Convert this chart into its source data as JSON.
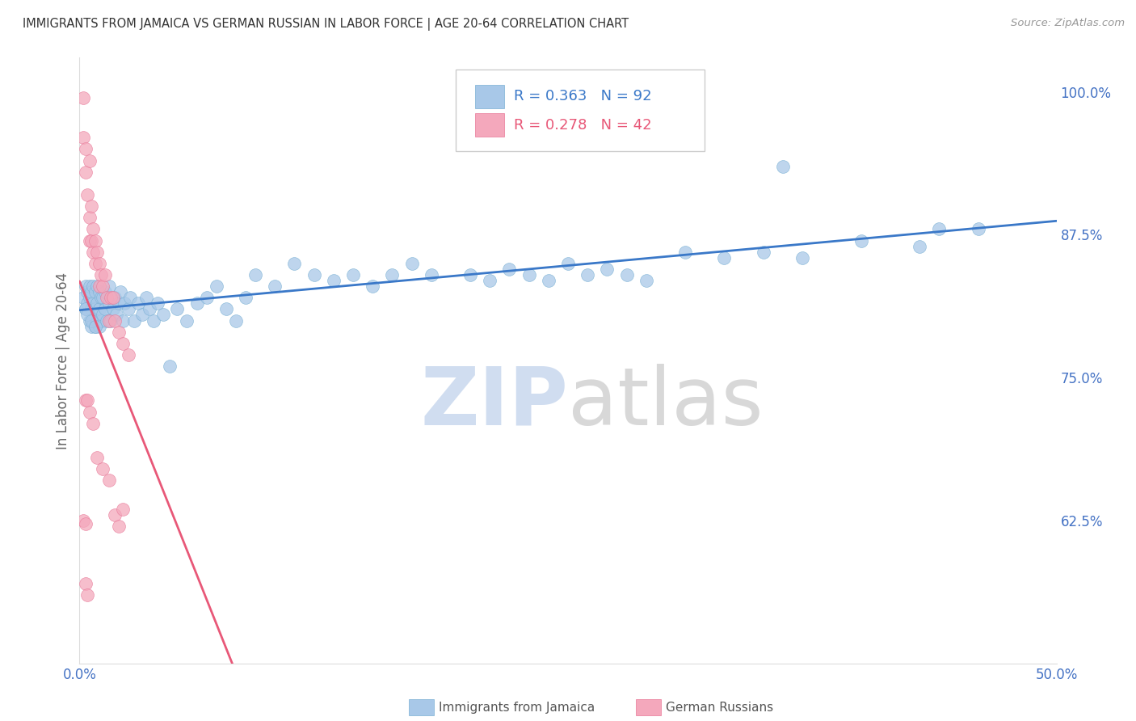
{
  "title": "IMMIGRANTS FROM JAMAICA VS GERMAN RUSSIAN IN LABOR FORCE | AGE 20-64 CORRELATION CHART",
  "source": "Source: ZipAtlas.com",
  "ylabel": "In Labor Force | Age 20-64",
  "xlim": [
    0.0,
    0.5
  ],
  "ylim": [
    0.5,
    1.03
  ],
  "xtick_vals": [
    0.0,
    0.1,
    0.2,
    0.3,
    0.4,
    0.5
  ],
  "xtick_labels": [
    "0.0%",
    "",
    "",
    "",
    "",
    "50.0%"
  ],
  "ytick_vals": [
    0.625,
    0.75,
    0.875,
    1.0
  ],
  "ytick_labels": [
    "62.5%",
    "75.0%",
    "87.5%",
    "100.0%"
  ],
  "jamaica_color": "#a8c8e8",
  "german_color": "#f4a8bc",
  "jamaica_edge": "#7ab0d4",
  "german_edge": "#e87898",
  "jamaica_line_color": "#3a78c8",
  "german_line_color": "#e85878",
  "jamaica_R": 0.363,
  "jamaica_N": 92,
  "german_R": 0.278,
  "german_N": 42,
  "watermark_zip": "ZIP",
  "watermark_atlas": "atlas",
  "watermark_color_zip": "#d0ddf0",
  "watermark_color_atlas": "#d8d8d8",
  "legend_jamaica": "Immigrants from Jamaica",
  "legend_german": "German Russians",
  "background_color": "#ffffff",
  "grid_color": "#cccccc",
  "title_color": "#333333",
  "axis_label_color": "#666666",
  "tick_color": "#4472c4",
  "source_color": "#999999",
  "jamaica_x": [
    0.002,
    0.003,
    0.003,
    0.004,
    0.004,
    0.005,
    0.005,
    0.005,
    0.006,
    0.006,
    0.006,
    0.007,
    0.007,
    0.007,
    0.008,
    0.008,
    0.008,
    0.009,
    0.009,
    0.009,
    0.01,
    0.01,
    0.01,
    0.011,
    0.011,
    0.012,
    0.012,
    0.013,
    0.013,
    0.014,
    0.015,
    0.015,
    0.016,
    0.017,
    0.018,
    0.019,
    0.02,
    0.021,
    0.022,
    0.023,
    0.025,
    0.026,
    0.028,
    0.03,
    0.032,
    0.034,
    0.036,
    0.038,
    0.04,
    0.043,
    0.046,
    0.05,
    0.055,
    0.06,
    0.065,
    0.07,
    0.075,
    0.08,
    0.085,
    0.09,
    0.1,
    0.11,
    0.12,
    0.13,
    0.14,
    0.15,
    0.16,
    0.17,
    0.18,
    0.2,
    0.21,
    0.22,
    0.23,
    0.24,
    0.25,
    0.26,
    0.27,
    0.28,
    0.29,
    0.31,
    0.33,
    0.35,
    0.37,
    0.4,
    0.43,
    0.46,
    0.003,
    0.004,
    0.006,
    0.008,
    0.36,
    0.44
  ],
  "jamaica_y": [
    0.82,
    0.81,
    0.83,
    0.815,
    0.825,
    0.8,
    0.82,
    0.83,
    0.795,
    0.81,
    0.825,
    0.8,
    0.815,
    0.83,
    0.795,
    0.81,
    0.825,
    0.8,
    0.815,
    0.83,
    0.795,
    0.81,
    0.825,
    0.8,
    0.82,
    0.805,
    0.82,
    0.81,
    0.825,
    0.8,
    0.815,
    0.83,
    0.8,
    0.81,
    0.82,
    0.805,
    0.815,
    0.825,
    0.8,
    0.815,
    0.81,
    0.82,
    0.8,
    0.815,
    0.805,
    0.82,
    0.81,
    0.8,
    0.815,
    0.805,
    0.76,
    0.81,
    0.8,
    0.815,
    0.82,
    0.83,
    0.81,
    0.8,
    0.82,
    0.84,
    0.83,
    0.85,
    0.84,
    0.835,
    0.84,
    0.83,
    0.84,
    0.85,
    0.84,
    0.84,
    0.835,
    0.845,
    0.84,
    0.835,
    0.85,
    0.84,
    0.845,
    0.84,
    0.835,
    0.86,
    0.855,
    0.86,
    0.855,
    0.87,
    0.865,
    0.88,
    0.81,
    0.805,
    0.8,
    0.795,
    0.935,
    0.88
  ],
  "german_x": [
    0.002,
    0.002,
    0.003,
    0.003,
    0.003,
    0.004,
    0.004,
    0.005,
    0.005,
    0.005,
    0.006,
    0.006,
    0.007,
    0.007,
    0.008,
    0.008,
    0.009,
    0.01,
    0.01,
    0.011,
    0.012,
    0.013,
    0.014,
    0.015,
    0.016,
    0.017,
    0.018,
    0.02,
    0.022,
    0.025,
    0.003,
    0.004,
    0.005,
    0.007,
    0.009,
    0.012,
    0.015,
    0.018,
    0.02,
    0.002,
    0.003,
    0.022
  ],
  "german_y": [
    0.995,
    0.96,
    0.95,
    0.93,
    0.57,
    0.91,
    0.56,
    0.94,
    0.89,
    0.87,
    0.9,
    0.87,
    0.88,
    0.86,
    0.87,
    0.85,
    0.86,
    0.85,
    0.83,
    0.84,
    0.83,
    0.84,
    0.82,
    0.8,
    0.82,
    0.82,
    0.8,
    0.79,
    0.78,
    0.77,
    0.73,
    0.73,
    0.72,
    0.71,
    0.68,
    0.67,
    0.66,
    0.63,
    0.62,
    0.625,
    0.622,
    0.635
  ]
}
